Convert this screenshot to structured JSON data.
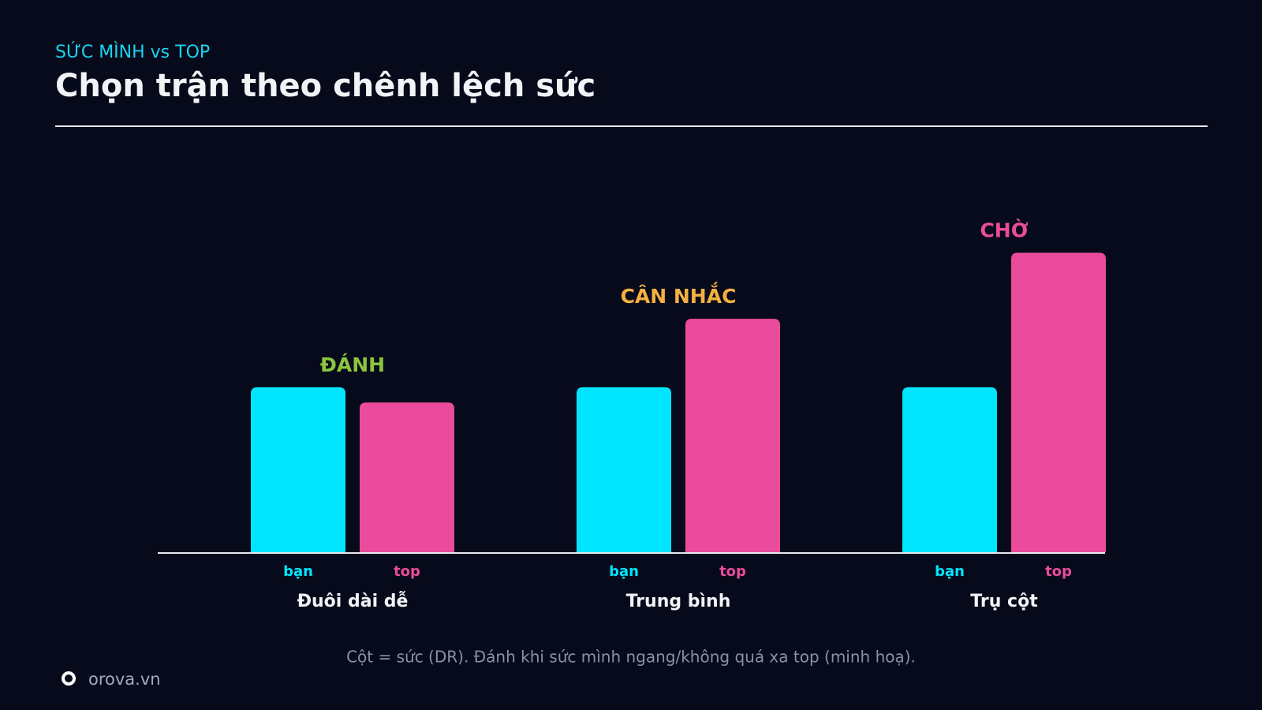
{
  "chart_data": {
    "type": "bar",
    "kicker": "SỨC MÌNH vs TOP",
    "title": "Chọn trận theo chênh lệch sức",
    "categories": [
      "Đuôi dài dễ",
      "Trung bình",
      "Trụ cột"
    ],
    "series": [
      {
        "name": "bạn",
        "color": "#00e5ff",
        "values": [
          205,
          205,
          205
        ]
      },
      {
        "name": "top",
        "color": "#ea4c9b",
        "values": [
          186,
          290,
          372
        ]
      }
    ],
    "annotations": [
      {
        "text": "ĐÁNH",
        "color": "#8bc53f"
      },
      {
        "text": "CÂN NHẮC",
        "color": "#f5b041"
      },
      {
        "text": "CHỜ",
        "color": "#ea4c9b"
      }
    ],
    "caption": "Cột = sức (DR). Đánh khi sức mình ngang/không quá xa top (minh hoạ).",
    "brand": "orova.vn"
  }
}
